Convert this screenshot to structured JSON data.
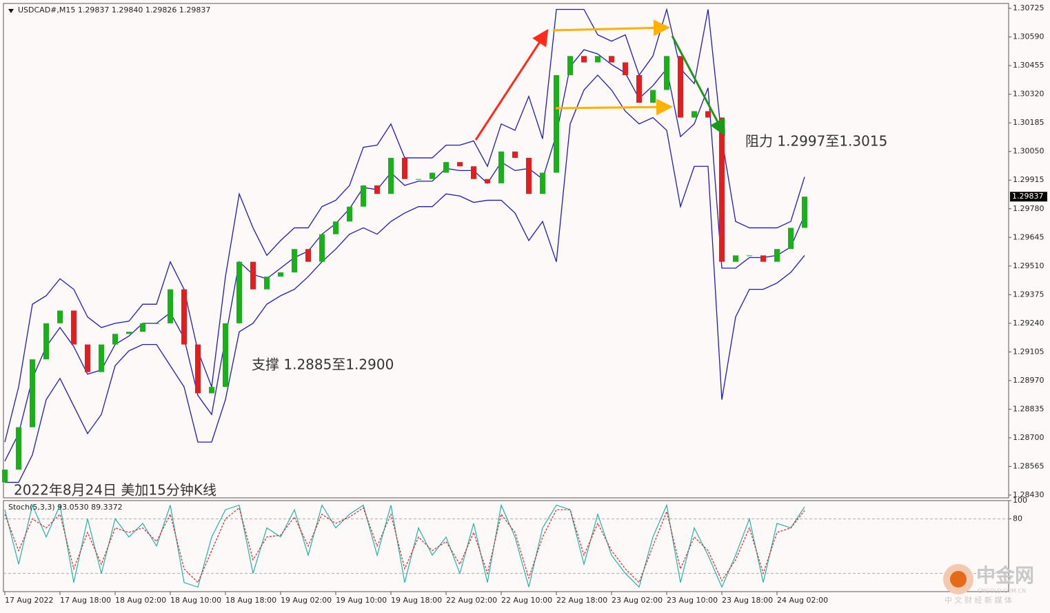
{
  "chart_data": [
    {
      "type": "candlestick",
      "title": "USDCAD#,M15  1.29837 1.29840 1.29826 1.29837",
      "categories": [
        "17 Aug 2022",
        null,
        null,
        null,
        "17 Aug 18:00",
        null,
        null,
        null,
        "18 Aug 02:00",
        null,
        null,
        null,
        "18 Aug 10:00",
        null,
        null,
        null,
        "18 Aug 18:00",
        null,
        null,
        null,
        "19 Aug 02:00",
        null,
        null,
        null,
        "19 Aug 10:00",
        null,
        null,
        null,
        "19 Aug 18:00",
        null,
        null,
        null,
        "22 Aug 02:00",
        null,
        null,
        null,
        "22 Aug 10:00",
        null,
        null,
        null,
        "22 Aug 18:00",
        null,
        null,
        null,
        "23 Aug 02:00",
        null,
        null,
        null,
        "23 Aug 10:00",
        null,
        null,
        null,
        "23 Aug 18:00",
        null,
        null,
        null,
        "24 Aug 02:00",
        null,
        null
      ],
      "open": [
        1.2849,
        1.2855,
        1.2875,
        1.2907,
        1.2924,
        1.293,
        1.2914,
        1.2901,
        1.2914,
        1.2919,
        1.292,
        1.2924,
        1.2924,
        1.294,
        1.2914,
        1.2891,
        1.2894,
        1.2924,
        1.2953,
        1.294,
        1.2946,
        1.2948,
        1.2959,
        1.2953,
        1.2966,
        1.2972,
        1.2979,
        1.2989,
        1.2985,
        1.3002,
        1.2992,
        1.2992,
        1.2995,
        1.3,
        1.2998,
        1.2992,
        1.299,
        1.3005,
        1.3002,
        1.2985,
        1.2995,
        1.3041,
        1.305,
        1.3047,
        1.305,
        1.3047,
        1.3041,
        1.3028,
        1.3034,
        1.305,
        1.3021,
        1.3024,
        1.3021,
        1.2953,
        1.2956,
        1.2956,
        1.2953,
        1.2959,
        1.2969
      ],
      "close": [
        1.2855,
        1.2875,
        1.2907,
        1.2924,
        1.293,
        1.2914,
        1.2901,
        1.2914,
        1.2919,
        1.292,
        1.2924,
        1.2924,
        1.294,
        1.2914,
        1.2891,
        1.2894,
        1.2924,
        1.2953,
        1.294,
        1.2946,
        1.2948,
        1.2959,
        1.2953,
        1.2966,
        1.2972,
        1.2979,
        1.2989,
        1.2985,
        1.3002,
        1.2992,
        1.2992,
        1.2995,
        1.3,
        1.2998,
        1.2992,
        1.299,
        1.3005,
        1.3002,
        1.2985,
        1.2995,
        1.3041,
        1.305,
        1.3047,
        1.305,
        1.3047,
        1.3041,
        1.3028,
        1.3034,
        1.305,
        1.3021,
        1.3024,
        1.3021,
        1.2953,
        1.2956,
        1.2956,
        1.2953,
        1.2959,
        1.2969,
        1.29837
      ],
      "up_color": "#19b019",
      "down_color": "#e02020",
      "bands": [
        {
          "color": "#1a1ac8",
          "values": [
            1.2868,
            1.2894,
            1.2933,
            1.2937,
            1.2945,
            1.294,
            1.2927,
            1.2922,
            1.2924,
            1.2925,
            1.2933,
            1.2933,
            1.2953,
            1.294,
            1.2911,
            1.2894,
            1.2946,
            1.2985,
            1.2969,
            1.2956,
            1.2963,
            1.2969,
            1.2969,
            1.2979,
            1.2982,
            1.2989,
            1.3007,
            1.3008,
            1.3018,
            1.3002,
            1.3002,
            1.3002,
            1.3008,
            1.3008,
            1.301,
            1.2998,
            1.3018,
            1.3015,
            1.3031,
            1.3011,
            1.3072,
            1.3072,
            1.3072,
            1.306,
            1.3057,
            1.306,
            1.3041,
            1.305,
            1.3072,
            1.3044,
            1.3037,
            1.3072,
            1.3011,
            1.2972,
            1.2969,
            1.2969,
            1.2969,
            1.2972,
            1.2993
          ]
        },
        {
          "color": "#1a1ac8",
          "values": [
            1.2859,
            1.2872,
            1.2898,
            1.2913,
            1.2922,
            1.2913,
            1.29,
            1.2902,
            1.2914,
            1.2918,
            1.2924,
            1.2924,
            1.2929,
            1.2917,
            1.289,
            1.2881,
            1.2917,
            1.2953,
            1.2947,
            1.2945,
            1.295,
            1.2955,
            1.2958,
            1.2966,
            1.2971,
            1.2978,
            1.2988,
            1.2987,
            1.2995,
            1.2989,
            1.2991,
            1.2991,
            1.2997,
            1.2996,
            1.2996,
            1.299,
            1.3,
            1.2996,
            1.2997,
            1.2992,
            1.3013,
            1.3045,
            1.3053,
            1.3051,
            1.3046,
            1.3042,
            1.303,
            1.3036,
            1.3044,
            1.3012,
            1.3018,
            1.3035,
            1.295,
            1.295,
            1.2955,
            1.2955,
            1.2956,
            1.296,
            1.2975
          ]
        },
        {
          "color": "#1a1ac8",
          "values": [
            1.2849,
            1.2849,
            1.2862,
            1.2888,
            1.2898,
            1.2885,
            1.2872,
            1.2881,
            1.2904,
            1.2911,
            1.2914,
            1.2914,
            1.2904,
            1.2894,
            1.2868,
            1.2868,
            1.2888,
            1.292,
            1.2924,
            1.2933,
            1.2937,
            1.294,
            1.2946,
            1.2953,
            1.2959,
            1.2966,
            1.2969,
            1.2966,
            1.2972,
            1.2976,
            1.2979,
            1.2979,
            1.2985,
            1.2984,
            1.2981,
            1.2982,
            1.2982,
            1.2976,
            1.2963,
            1.2972,
            1.2953,
            1.3018,
            1.3034,
            1.3041,
            1.3034,
            1.3024,
            1.3018,
            1.3021,
            1.3015,
            1.2979,
            1.2998,
            1.2998,
            1.2888,
            1.2927,
            1.294,
            1.294,
            1.2943,
            1.2948,
            1.2956
          ]
        }
      ],
      "ylim": [
        1.28417,
        1.30748
      ],
      "yticks": [
        1.30725,
        {
          "value": 1.3059,
          "label": "1.30590"
        },
        1.30455,
        {
          "value": 1.3032,
          "label": "1.30320"
        },
        1.30185,
        {
          "value": 1.3005,
          "label": "1.30050"
        },
        1.29915,
        {
          "value": 1.2978,
          "label": "1.29780"
        },
        1.29645,
        {
          "value": 1.2951,
          "label": "1.29510"
        },
        1.29375,
        {
          "value": 1.2924,
          "label": "1.29240"
        },
        1.29105,
        {
          "value": 1.2897,
          "label": "1.28970"
        },
        1.28835,
        {
          "value": 1.287,
          "label": "1.28700"
        },
        1.28565,
        {
          "value": 1.2843,
          "label": "1.28430"
        }
      ],
      "current_price": 1.29837,
      "annotations": [
        {
          "text": "支撑 1.2885至1.2900"
        },
        {
          "text": "阻力 1.2997至1.3015"
        },
        {
          "text": "2022年8月24日 美加15分钟K线"
        }
      ]
    },
    {
      "type": "line",
      "title": "Stoch(5,3,3) 93.0530 89.3372",
      "series": [
        {
          "color": "#20b2aa",
          "values": [
            90,
            30,
            95,
            60,
            95,
            10,
            80,
            20,
            80,
            60,
            75,
            50,
            95,
            10,
            5,
            60,
            90,
            95,
            20,
            70,
            60,
            90,
            40,
            95,
            70,
            85,
            95,
            40,
            95,
            10,
            70,
            40,
            60,
            20,
            75,
            10,
            95,
            60,
            5,
            70,
            95,
            90,
            30,
            85,
            40,
            20,
            5,
            60,
            95,
            10,
            70,
            40,
            5,
            40,
            80,
            10,
            75,
            70,
            93
          ]
        },
        {
          "color": "#e02020",
          "dashed": true,
          "values": [
            85,
            45,
            80,
            70,
            85,
            25,
            65,
            30,
            70,
            65,
            70,
            55,
            85,
            25,
            10,
            45,
            80,
            92,
            35,
            60,
            62,
            82,
            50,
            85,
            75,
            82,
            92,
            50,
            85,
            25,
            60,
            45,
            55,
            30,
            65,
            20,
            85,
            65,
            15,
            60,
            90,
            90,
            40,
            75,
            45,
            25,
            10,
            50,
            88,
            25,
            60,
            45,
            12,
            35,
            70,
            20,
            65,
            70,
            89
          ]
        }
      ],
      "ylim": [
        0,
        100
      ],
      "yticks": [
        100,
        80
      ],
      "levels": [
        80,
        20
      ]
    }
  ],
  "watermark": {
    "name": "中金网",
    "domain": "CNGOLD.COM.CN",
    "slogan": "中 文 财 经 新 媒 体"
  }
}
